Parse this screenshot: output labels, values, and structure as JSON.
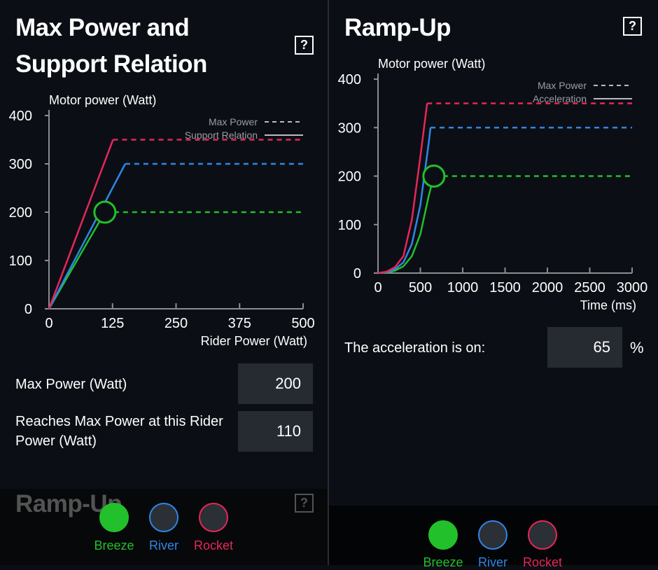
{
  "chart_data": [
    {
      "type": "line",
      "ylabel": "Motor power (Watt)",
      "xlabel": "Rider Power (Watt)",
      "xlim": [
        0,
        500
      ],
      "ylim": [
        0,
        400
      ],
      "xticks": [
        0,
        125,
        250,
        375,
        500
      ],
      "yticks": [
        0,
        100,
        200,
        300,
        400
      ],
      "legend": [
        {
          "label": "Max Power",
          "style": "dashed"
        },
        {
          "label": "Support Relation",
          "style": "solid"
        }
      ],
      "series": [
        {
          "name": "Breeze",
          "color": "#22c02a",
          "x": [
            0,
            110,
            500
          ],
          "values": [
            0,
            200,
            200
          ]
        },
        {
          "name": "River",
          "color": "#2f86e6",
          "x": [
            0,
            150,
            500
          ],
          "values": [
            0,
            300,
            300
          ]
        },
        {
          "name": "Rocket",
          "color": "#e8265a",
          "x": [
            0,
            126,
            500
          ],
          "values": [
            0,
            350,
            350
          ]
        }
      ],
      "marker": {
        "x": 110,
        "y": 200,
        "color": "#22c02a"
      }
    },
    {
      "type": "line",
      "ylabel": "Motor power (Watt)",
      "xlabel": "Time (ms)",
      "xlim": [
        0,
        3000
      ],
      "ylim": [
        0,
        400
      ],
      "xticks": [
        0,
        500,
        1000,
        1500,
        2000,
        2500,
        3000
      ],
      "yticks": [
        0,
        100,
        200,
        300,
        400
      ],
      "legend": [
        {
          "label": "Max Power",
          "style": "dashed"
        },
        {
          "label": "Acceleration",
          "style": "solid"
        }
      ],
      "series": [
        {
          "name": "Breeze",
          "color": "#22c02a",
          "x": [
            0,
            100,
            200,
            300,
            400,
            500,
            600,
            660,
            3000
          ],
          "values": [
            0,
            1,
            5,
            14,
            35,
            80,
            160,
            200,
            200
          ]
        },
        {
          "name": "River",
          "color": "#2f86e6",
          "x": [
            0,
            100,
            200,
            300,
            400,
            500,
            600,
            620,
            3000
          ],
          "values": [
            0,
            2,
            8,
            22,
            60,
            140,
            270,
            300,
            300
          ]
        },
        {
          "name": "Rocket",
          "color": "#e8265a",
          "x": [
            0,
            100,
            200,
            300,
            400,
            500,
            580,
            3000
          ],
          "values": [
            0,
            3,
            12,
            35,
            110,
            240,
            350,
            350
          ]
        }
      ],
      "marker": {
        "x": 660,
        "y": 200,
        "color": "#22c02a"
      }
    }
  ],
  "left": {
    "title": "Max Power and Support Relation",
    "help": "?",
    "fields": [
      {
        "label": "Max Power (Watt)",
        "value": 200
      },
      {
        "label": "Reaches Max Power at this Rider Power (Watt)",
        "value": 110
      }
    ],
    "next_title": "Ramp-Up",
    "next_help": "?"
  },
  "right": {
    "title": "Ramp-Up",
    "help": "?",
    "fields": [
      {
        "label": "The acceleration is on:",
        "value": 65,
        "unit": "%"
      }
    ]
  }
}
